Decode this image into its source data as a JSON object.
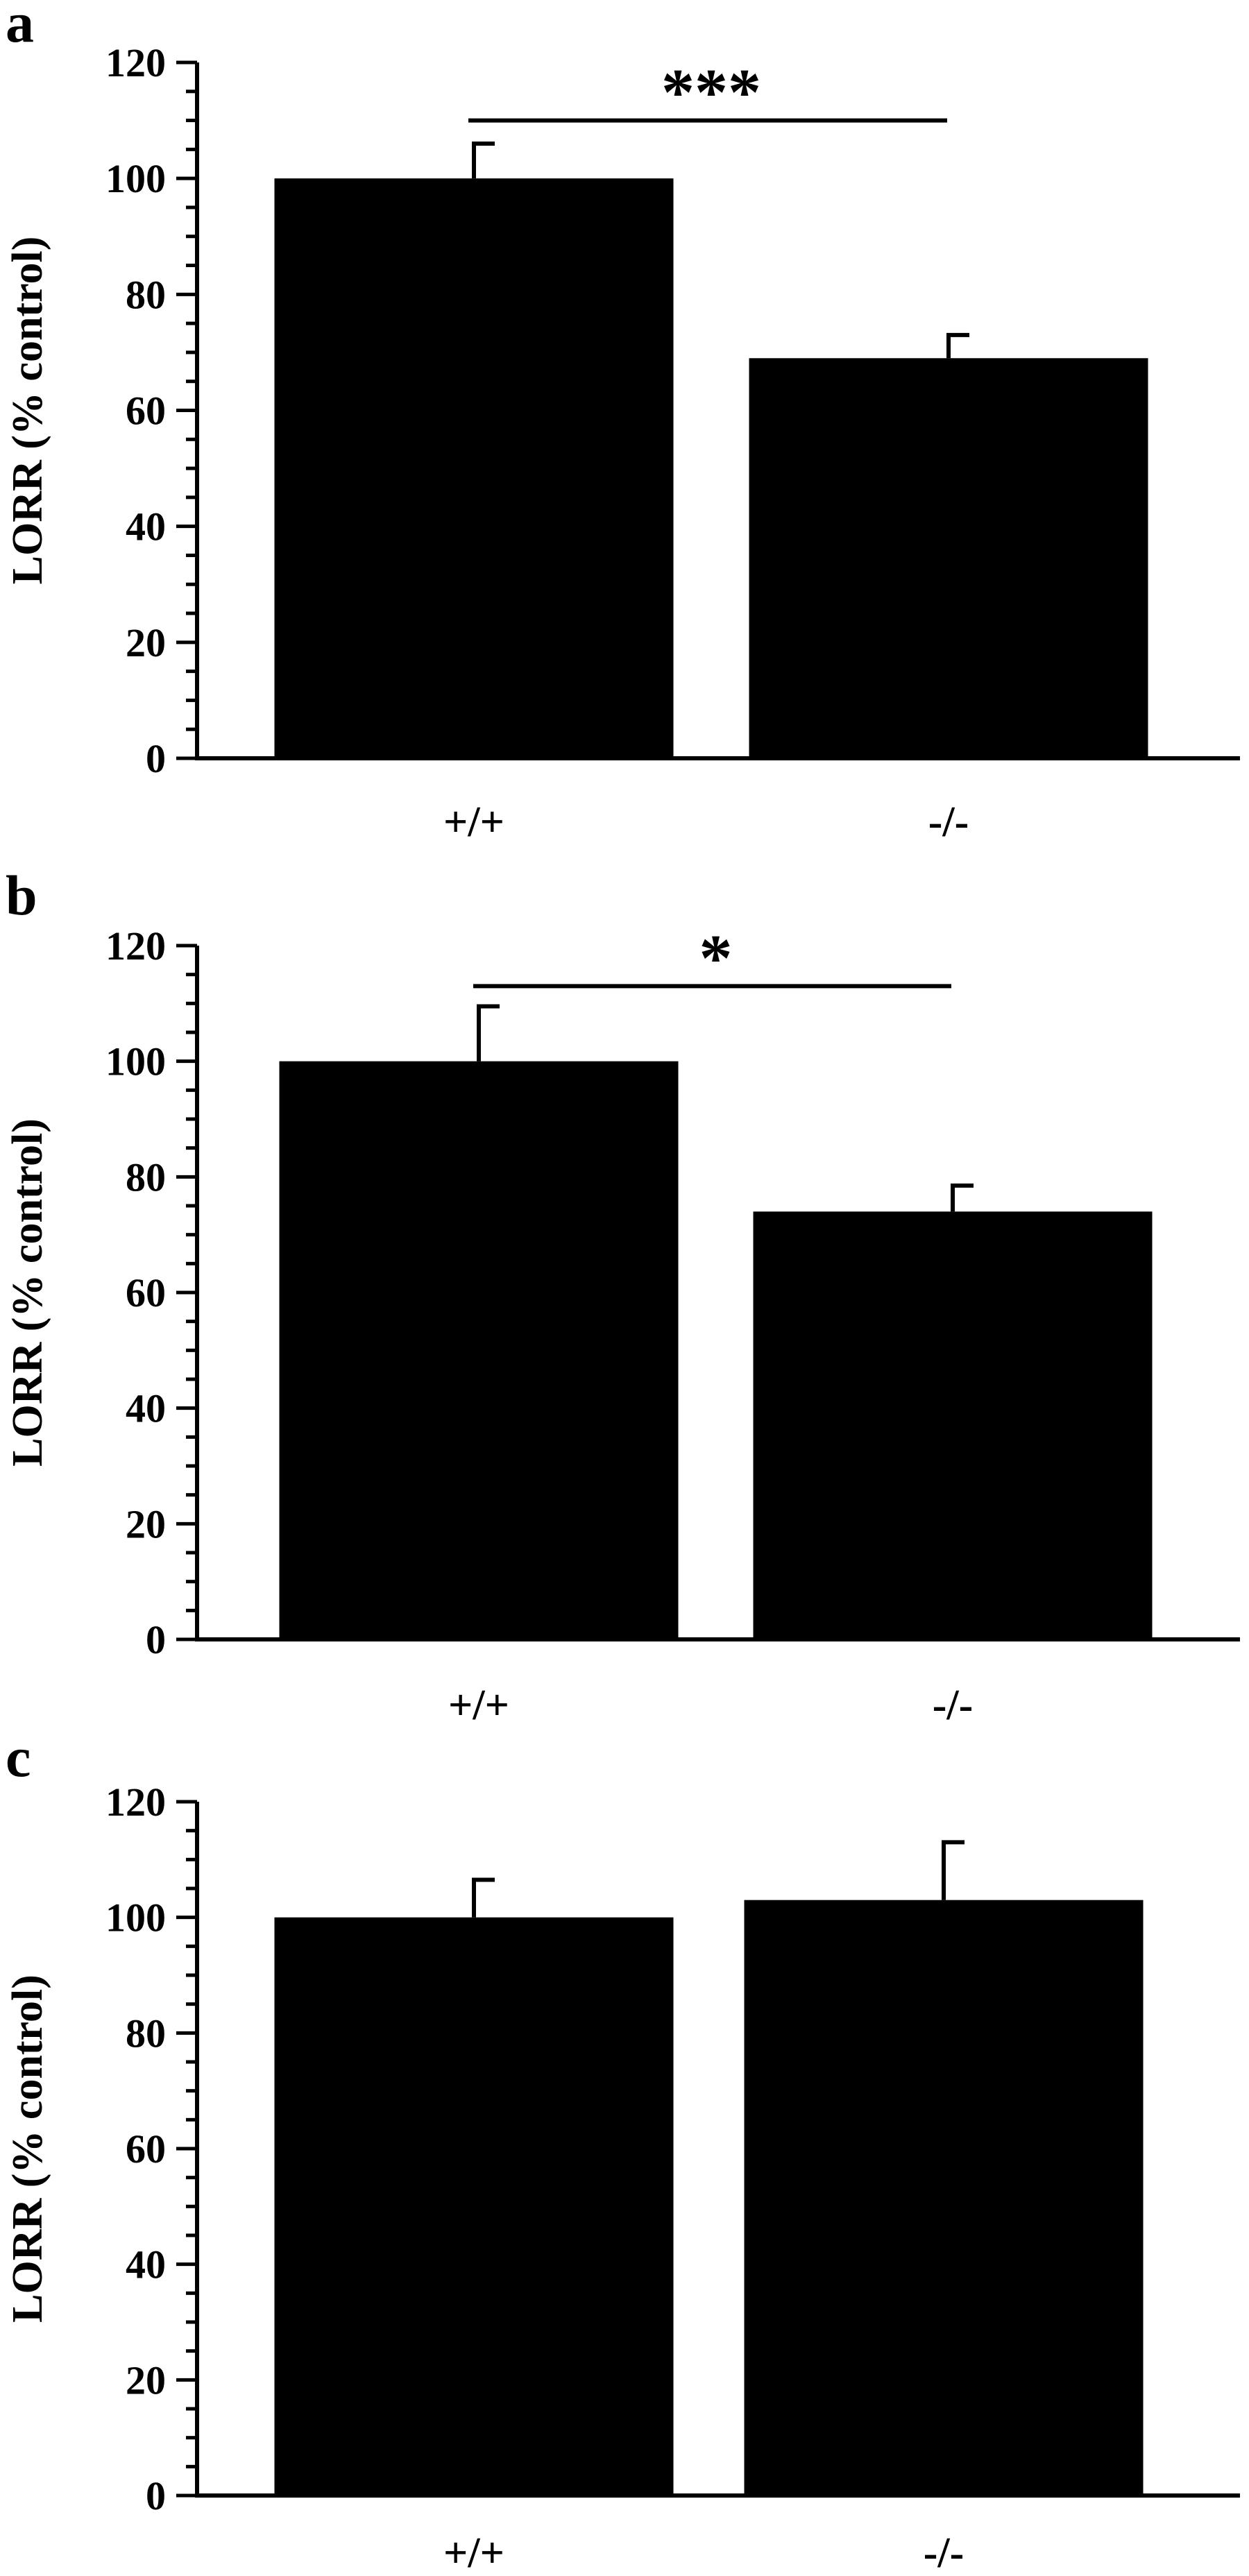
{
  "figure": {
    "colors": {
      "bar": "#000000",
      "axis": "#000000",
      "background": "#ffffff"
    }
  },
  "chart_data": [
    {
      "panel_label": "a",
      "type": "bar",
      "categories": [
        "+/+",
        "-/-"
      ],
      "values": [
        100,
        69
      ],
      "errors": [
        6,
        4
      ],
      "ylabel": "LORR (% control)",
      "ylim": [
        0,
        120
      ],
      "yticks": [
        0,
        20,
        40,
        60,
        80,
        100,
        120
      ],
      "minor_tick_step": 5,
      "grid": false,
      "significance": {
        "from": 0,
        "to": 1,
        "label": "***",
        "y": 110
      }
    },
    {
      "panel_label": "b",
      "type": "bar",
      "categories": [
        "+/+",
        "-/-"
      ],
      "values": [
        100,
        74
      ],
      "errors": [
        9.5,
        4.5
      ],
      "ylabel": "LORR (% control)",
      "ylim": [
        0,
        120
      ],
      "yticks": [
        0,
        20,
        40,
        60,
        80,
        100,
        120
      ],
      "minor_tick_step": 5,
      "grid": false,
      "significance": {
        "from": 0,
        "to": 1,
        "label": "*",
        "y": 113
      }
    },
    {
      "panel_label": "c",
      "type": "bar",
      "categories": [
        "+/+",
        "-/-"
      ],
      "values": [
        100,
        103
      ],
      "errors": [
        6.5,
        10
      ],
      "ylabel": "LORR (% control)",
      "ylim": [
        0,
        120
      ],
      "yticks": [
        0,
        20,
        40,
        60,
        80,
        100,
        120
      ],
      "minor_tick_step": 5,
      "grid": false
    }
  ]
}
